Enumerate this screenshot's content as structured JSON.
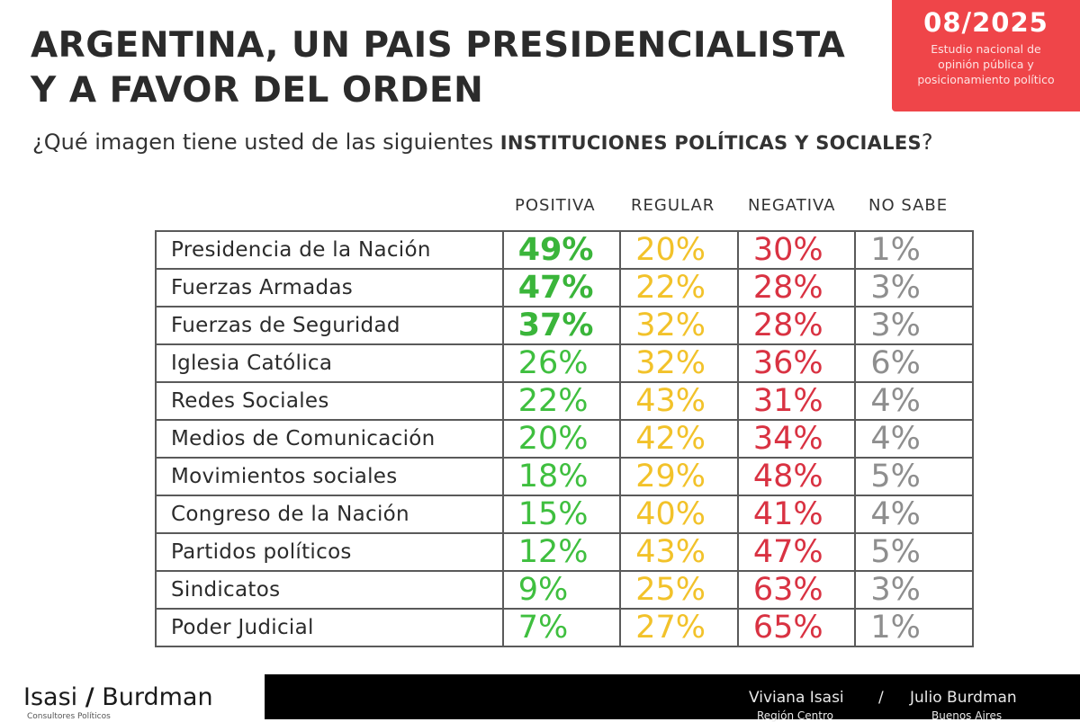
{
  "header": {
    "title_line1": "ARGENTINA, UN PAIS PRESIDENCIALISTA",
    "title_line2": "Y A FAVOR DEL ORDEN",
    "question_normal": "¿Qué imagen tiene usted de las siguientes ",
    "question_bold": "INSTITUCIONES POLÍTICAS Y SOCIALES",
    "question_end": "?"
  },
  "badge": {
    "date": "08/2025",
    "line1": "Estudio nacional de",
    "line2": "opinión pública y",
    "line3": "posicionamiento político",
    "color": "#ef4549"
  },
  "colors": {
    "positiva": "#3fbf3f",
    "regular": "#f2c22a",
    "negativa": "#d93242",
    "no_sabe": "#8e8e8e"
  },
  "chart_data": {
    "type": "table",
    "columns": [
      "POSITIVA",
      "REGULAR",
      "NEGATIVA",
      "NO SABE"
    ],
    "rows": [
      {
        "institution": "Presidencia de la Nación",
        "values": [
          "49%",
          "20%",
          "30%",
          "1%"
        ]
      },
      {
        "institution": "Fuerzas Armadas",
        "values": [
          "47%",
          "22%",
          "28%",
          "3%"
        ]
      },
      {
        "institution": "Fuerzas de Seguridad",
        "values": [
          "37%",
          "32%",
          "28%",
          "3%"
        ]
      },
      {
        "institution": "Iglesia Católica",
        "values": [
          "26%",
          "32%",
          "36%",
          "6%"
        ]
      },
      {
        "institution": "Redes Sociales",
        "values": [
          "22%",
          "43%",
          "31%",
          "4%"
        ]
      },
      {
        "institution": "Medios de Comunicación",
        "values": [
          "20%",
          "42%",
          "34%",
          "4%"
        ]
      },
      {
        "institution": "Movimientos sociales",
        "values": [
          "18%",
          "29%",
          "48%",
          "5%"
        ]
      },
      {
        "institution": "Congreso de la Nación",
        "values": [
          "15%",
          "40%",
          "41%",
          "4%"
        ]
      },
      {
        "institution": "Partidos políticos",
        "values": [
          "12%",
          "43%",
          "47%",
          "5%"
        ]
      },
      {
        "institution": "Sindicatos",
        "values": [
          "9%",
          "25%",
          "63%",
          "3%"
        ]
      },
      {
        "institution": "Poder Judicial",
        "values": [
          "7%",
          "27%",
          "65%",
          "1%"
        ]
      }
    ]
  },
  "footer": {
    "logo_left": "Isasi",
    "logo_slash": "/",
    "logo_right": "Burdman",
    "logo_sub": "Consultores Políticos",
    "name1": "Viviana Isasi",
    "separator": "/",
    "name2": "Julio Burdman",
    "region1": "Región Centro",
    "region2": "Buenos Aires"
  }
}
